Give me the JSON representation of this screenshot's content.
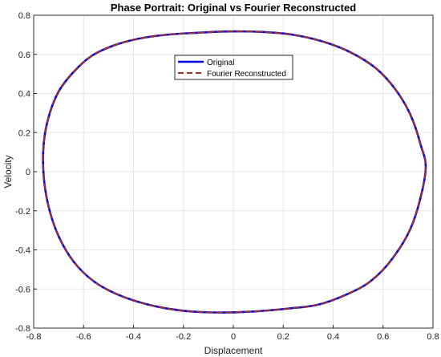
{
  "chart_data": {
    "type": "line",
    "title": "Phase Portrait: Original vs Fourier Reconstructed",
    "xlabel": "Displacement",
    "ylabel": "Velocity",
    "xlim": [
      -0.8,
      0.8
    ],
    "ylim": [
      -0.8,
      0.8
    ],
    "xticks": [
      -0.8,
      -0.6,
      -0.4,
      -0.2,
      0,
      0.2,
      0.4,
      0.6,
      0.8
    ],
    "yticks": [
      -0.8,
      -0.6,
      -0.4,
      -0.2,
      0,
      0.2,
      0.4,
      0.6,
      0.8
    ],
    "xtick_labels": [
      "-0.8",
      "-0.6",
      "-0.4",
      "-0.2",
      "0",
      "0.2",
      "0.4",
      "0.6",
      "0.8"
    ],
    "ytick_labels": [
      "-0.8",
      "-0.6",
      "-0.4",
      "-0.2",
      "0",
      "0.2",
      "0.4",
      "0.6",
      "0.8"
    ],
    "grid": true,
    "legend_position": "top-center",
    "series": [
      {
        "name": "Original",
        "color": "#0000e0",
        "style": "solid",
        "x": [
          0.77,
          0.72,
          0.64,
          0.55,
          0.45,
          0.34,
          0.22,
          0.08,
          -0.07,
          -0.21,
          -0.34,
          -0.46,
          -0.56,
          -0.64,
          -0.7,
          -0.74,
          -0.76,
          -0.76,
          -0.74,
          -0.7,
          -0.64,
          -0.57,
          -0.48,
          -0.38,
          -0.27,
          -0.15,
          -0.02,
          0.11,
          0.24,
          0.36,
          0.47,
          0.57,
          0.65,
          0.71,
          0.75,
          0.77
        ],
        "y": [
          0.0,
          -0.26,
          -0.44,
          -0.56,
          -0.63,
          -0.68,
          -0.7,
          -0.715,
          -0.72,
          -0.71,
          -0.68,
          -0.63,
          -0.56,
          -0.46,
          -0.33,
          -0.18,
          -0.02,
          0.14,
          0.28,
          0.41,
          0.51,
          0.59,
          0.645,
          0.68,
          0.7,
          0.71,
          0.717,
          0.715,
          0.7,
          0.665,
          0.61,
          0.53,
          0.42,
          0.29,
          0.14,
          0.0
        ]
      },
      {
        "name": "Fourier Reconstructed",
        "color": "#a0302a",
        "style": "dashed",
        "x": [
          0.77,
          0.72,
          0.64,
          0.55,
          0.45,
          0.34,
          0.22,
          0.08,
          -0.07,
          -0.21,
          -0.34,
          -0.46,
          -0.56,
          -0.64,
          -0.7,
          -0.74,
          -0.76,
          -0.76,
          -0.74,
          -0.7,
          -0.64,
          -0.57,
          -0.48,
          -0.38,
          -0.27,
          -0.15,
          -0.02,
          0.11,
          0.24,
          0.36,
          0.47,
          0.57,
          0.65,
          0.71,
          0.75,
          0.77
        ],
        "y": [
          0.0,
          -0.26,
          -0.44,
          -0.56,
          -0.63,
          -0.68,
          -0.7,
          -0.715,
          -0.72,
          -0.71,
          -0.68,
          -0.63,
          -0.56,
          -0.46,
          -0.33,
          -0.18,
          -0.02,
          0.14,
          0.28,
          0.41,
          0.51,
          0.59,
          0.645,
          0.68,
          0.7,
          0.71,
          0.717,
          0.715,
          0.7,
          0.665,
          0.61,
          0.53,
          0.42,
          0.29,
          0.14,
          0.0
        ]
      }
    ]
  }
}
